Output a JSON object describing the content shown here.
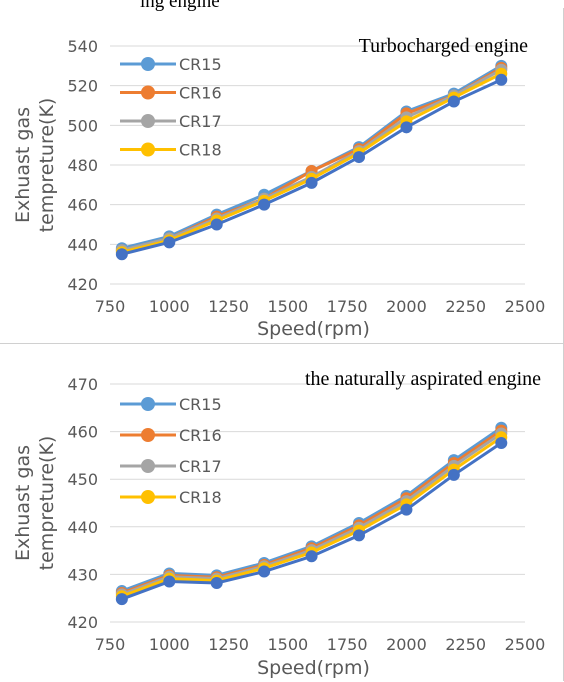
{
  "page_caption": "ing engine",
  "colors": {
    "CR15": "#5B9BD5",
    "CR16": "#ED7D31",
    "CR17": "#A5A5A5",
    "CR18": "#FFC000",
    "front_overlay": "#4472C4"
  },
  "chart_data": [
    {
      "type": "line",
      "title": "Turbocharged engine",
      "xlabel": "Speed(rpm)",
      "ylabel": [
        "Exhuast gas",
        "tempreture(K)"
      ],
      "xlim": [
        750,
        2500
      ],
      "ylim": [
        420,
        540
      ],
      "xticks": [
        750,
        1000,
        1250,
        1500,
        1750,
        2000,
        2250,
        2500
      ],
      "yticks": [
        420,
        440,
        460,
        480,
        500,
        520,
        540
      ],
      "grid": "horizontal",
      "legend_position": "top-left",
      "x": [
        800,
        1000,
        1200,
        1400,
        1600,
        1800,
        2000,
        2200,
        2400
      ],
      "series": [
        {
          "name": "CR15",
          "values": [
            438,
            444,
            455,
            465,
            477,
            489,
            507,
            516,
            530
          ]
        },
        {
          "name": "CR16",
          "values": [
            437,
            443,
            454,
            463,
            477,
            488,
            506,
            515,
            529
          ]
        },
        {
          "name": "CR17",
          "values": [
            437,
            443,
            453,
            463,
            474,
            487,
            504,
            515,
            528
          ]
        },
        {
          "name": "CR18",
          "values": [
            436,
            442,
            452,
            462,
            473,
            486,
            502,
            514,
            526
          ]
        }
      ],
      "front_series": {
        "values": [
          435,
          441,
          450,
          460,
          471,
          484,
          499,
          512,
          523
        ]
      }
    },
    {
      "type": "line",
      "title": "the naturally aspirated engine",
      "xlabel": "Speed(rpm)",
      "ylabel": [
        "Exhuast gas",
        "tempreture(K)"
      ],
      "xlim": [
        750,
        2500
      ],
      "ylim": [
        420,
        470
      ],
      "xticks": [
        750,
        1000,
        1250,
        1500,
        1750,
        2000,
        2250,
        2500
      ],
      "yticks": [
        420,
        430,
        440,
        450,
        460,
        470
      ],
      "grid": "horizontal",
      "legend_position": "top-left",
      "x": [
        800,
        1000,
        1200,
        1400,
        1600,
        1800,
        2000,
        2200,
        2400
      ],
      "series": [
        {
          "name": "CR15",
          "values": [
            426.5,
            430.2,
            429.8,
            432.4,
            435.9,
            440.8,
            446.5,
            454.0,
            460.8
          ]
        },
        {
          "name": "CR16",
          "values": [
            426.1,
            429.8,
            429.4,
            432.0,
            435.5,
            440.3,
            446.0,
            453.4,
            460.2
          ]
        },
        {
          "name": "CR17",
          "values": [
            425.8,
            429.5,
            429.1,
            431.7,
            435.1,
            439.8,
            445.4,
            452.8,
            459.6
          ]
        },
        {
          "name": "CR18",
          "values": [
            425.4,
            429.1,
            428.7,
            431.3,
            434.6,
            439.2,
            444.7,
            452.0,
            458.8
          ]
        }
      ],
      "front_series": {
        "values": [
          424.8,
          428.5,
          428.2,
          430.6,
          433.8,
          438.2,
          443.6,
          450.9,
          457.6
        ]
      }
    }
  ]
}
